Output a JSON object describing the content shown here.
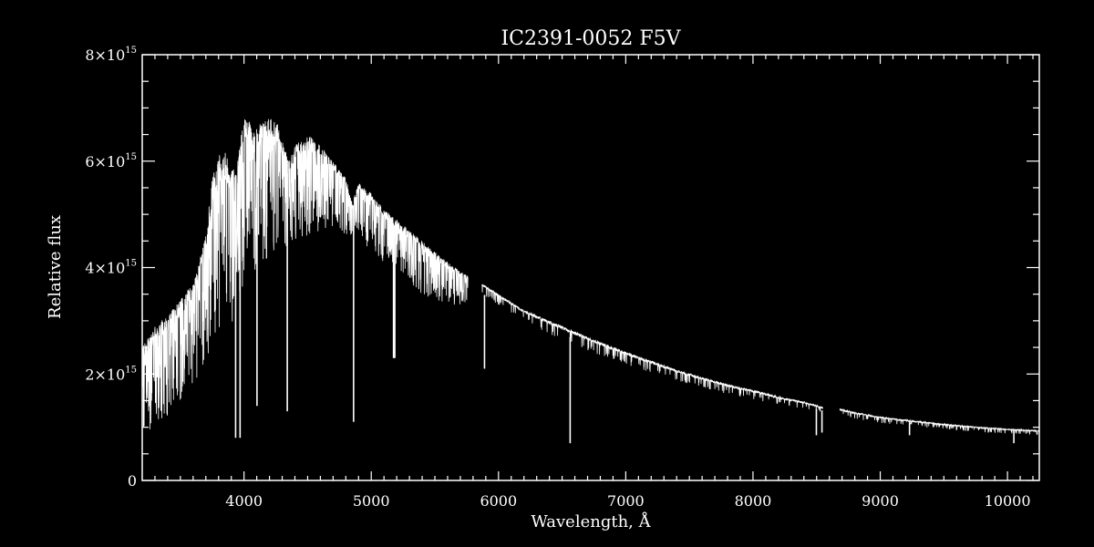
{
  "chart_data": {
    "type": "line",
    "title": "IC2391-0052  F5V",
    "xlabel": "Wavelength, Å",
    "ylabel": "Relative flux",
    "xlim": [
      3200,
      10250
    ],
    "ylim": [
      0,
      8000000000000000.0
    ],
    "grid": false,
    "x_ticks": [
      4000,
      5000,
      6000,
      7000,
      8000,
      9000,
      10000
    ],
    "x_tick_labels": [
      "4000",
      "5000",
      "6000",
      "7000",
      "8000",
      "9000",
      "10000"
    ],
    "y_ticks": [
      {
        "value": 0,
        "mantissa": "0",
        "exponent": ""
      },
      {
        "value": 2000000000000000.0,
        "mantissa": "2×10",
        "exponent": "15"
      },
      {
        "value": 4000000000000000.0,
        "mantissa": "4×10",
        "exponent": "15"
      },
      {
        "value": 6000000000000000.0,
        "mantissa": "6×10",
        "exponent": "15"
      },
      {
        "value": 8000000000000000.0,
        "mantissa": "8×10",
        "exponent": "15"
      }
    ],
    "gaps": [
      [
        5760,
        5870
      ],
      [
        8550,
        8680
      ]
    ],
    "series": [
      {
        "envelope_upper": [
          [
            3200,
            2500000000000000.0
          ],
          [
            3300,
            2900000000000000.0
          ],
          [
            3400,
            3100000000000000.0
          ],
          [
            3500,
            3400000000000000.0
          ],
          [
            3600,
            3700000000000000.0
          ],
          [
            3700,
            4600000000000000.0
          ],
          [
            3750,
            5700000000000000.0
          ],
          [
            3800,
            6100000000000000.0
          ],
          [
            3850,
            6200000000000000.0
          ],
          [
            3900,
            5800000000000000.0
          ],
          [
            3950,
            6000000000000000.0
          ],
          [
            4000,
            6900000000000000.0
          ],
          [
            4100,
            6600000000000000.0
          ],
          [
            4150,
            6800000000000000.0
          ],
          [
            4250,
            6800000000000000.0
          ],
          [
            4350,
            6000000000000000.0
          ],
          [
            4400,
            6300000000000000.0
          ],
          [
            4500,
            6500000000000000.0
          ],
          [
            4600,
            6300000000000000.0
          ],
          [
            4700,
            6000000000000000.0
          ],
          [
            4800,
            5700000000000000.0
          ],
          [
            4850,
            5200000000000000.0
          ],
          [
            4900,
            5600000000000000.0
          ],
          [
            5000,
            5400000000000000.0
          ],
          [
            5100,
            5100000000000000.0
          ],
          [
            5200,
            4900000000000000.0
          ],
          [
            5300,
            4700000000000000.0
          ],
          [
            5400,
            4500000000000000.0
          ],
          [
            5500,
            4300000000000000.0
          ],
          [
            5600,
            4100000000000000.0
          ],
          [
            5750,
            3850000000000000.0
          ],
          [
            5870,
            3700000000000000.0
          ],
          [
            6000,
            3500000000000000.0
          ],
          [
            6200,
            3200000000000000.0
          ],
          [
            6400,
            3000000000000000.0
          ],
          [
            6600,
            2800000000000000.0
          ],
          [
            6800,
            2600000000000000.0
          ],
          [
            7000,
            2420000000000000.0
          ],
          [
            7200,
            2250000000000000.0
          ],
          [
            7400,
            2080000000000000.0
          ],
          [
            7600,
            1940000000000000.0
          ],
          [
            7800,
            1810000000000000.0
          ],
          [
            8000,
            1700000000000000.0
          ],
          [
            8200,
            1580000000000000.0
          ],
          [
            8400,
            1480000000000000.0
          ],
          [
            8550,
            1380000000000000.0
          ],
          [
            8680,
            1350000000000000.0
          ],
          [
            8800,
            1280000000000000.0
          ],
          [
            9000,
            1200000000000000.0
          ],
          [
            9200,
            1140000000000000.0
          ],
          [
            9400,
            1090000000000000.0
          ],
          [
            9600,
            1040000000000000.0
          ],
          [
            9800,
            1000000000000000.0
          ],
          [
            10000,
            970000000000000.0
          ],
          [
            10250,
            940000000000000.0
          ]
        ],
        "envelope_lower": [
          [
            3200,
            900000000000000.0
          ],
          [
            3300,
            1000000000000000.0
          ],
          [
            3400,
            1200000000000000.0
          ],
          [
            3500,
            1400000000000000.0
          ],
          [
            3600,
            1800000000000000.0
          ],
          [
            3700,
            2200000000000000.0
          ],
          [
            3800,
            2600000000000000.0
          ],
          [
            3900,
            2900000000000000.0
          ],
          [
            4000,
            3600000000000000.0
          ],
          [
            4100,
            4000000000000000.0
          ],
          [
            4200,
            4200000000000000.0
          ],
          [
            4300,
            4300000000000000.0
          ],
          [
            4400,
            4500000000000000.0
          ],
          [
            4500,
            4600000000000000.0
          ],
          [
            4600,
            4700000000000000.0
          ],
          [
            4700,
            4700000000000000.0
          ],
          [
            4800,
            4600000000000000.0
          ],
          [
            4900,
            4500000000000000.0
          ],
          [
            5000,
            4300000000000000.0
          ],
          [
            5100,
            4100000000000000.0
          ],
          [
            5200,
            3900000000000000.0
          ],
          [
            5300,
            3700000000000000.0
          ],
          [
            5400,
            3500000000000000.0
          ],
          [
            5500,
            3400000000000000.0
          ],
          [
            5600,
            3300000000000000.0
          ],
          [
            5750,
            3300000000000000.0
          ],
          [
            5870,
            3500000000000000.0
          ],
          [
            6000,
            3300000000000000.0
          ],
          [
            6200,
            3000000000000000.0
          ],
          [
            6400,
            2750000000000000.0
          ],
          [
            6600,
            2550000000000000.0
          ],
          [
            6800,
            2350000000000000.0
          ],
          [
            7000,
            2180000000000000.0
          ],
          [
            7200,
            2020000000000000.0
          ],
          [
            7400,
            1880000000000000.0
          ],
          [
            7600,
            1750000000000000.0
          ],
          [
            7800,
            1620000000000000.0
          ],
          [
            8000,
            1520000000000000.0
          ],
          [
            8200,
            1420000000000000.0
          ],
          [
            8400,
            1340000000000000.0
          ],
          [
            8550,
            1280000000000000.0
          ],
          [
            8680,
            1220000000000000.0
          ],
          [
            8800,
            1160000000000000.0
          ],
          [
            9000,
            1080000000000000.0
          ],
          [
            9200,
            1020000000000000.0
          ],
          [
            9400,
            980000000000000.0
          ],
          [
            9600,
            940000000000000.0
          ],
          [
            9800,
            910000000000000.0
          ],
          [
            10000,
            880000000000000.0
          ],
          [
            10250,
            860000000000000.0
          ]
        ],
        "absorption_lines": [
          [
            3934,
            800000000000000.0
          ],
          [
            3969,
            800000000000000.0
          ],
          [
            4102,
            1400000000000000.0
          ],
          [
            4340,
            1300000000000000.0
          ],
          [
            4861,
            1100000000000000.0
          ],
          [
            5175,
            2300000000000000.0
          ],
          [
            5185,
            2300000000000000.0
          ],
          [
            5890,
            2100000000000000.0
          ],
          [
            6563,
            700000000000000.0
          ],
          [
            8498,
            850000000000000.0
          ],
          [
            8542,
            900000000000000.0
          ],
          [
            9230,
            850000000000000.0
          ],
          [
            10050,
            700000000000000.0
          ]
        ]
      }
    ]
  },
  "colors": {
    "background": "#000000",
    "foreground": "#ffffff"
  }
}
